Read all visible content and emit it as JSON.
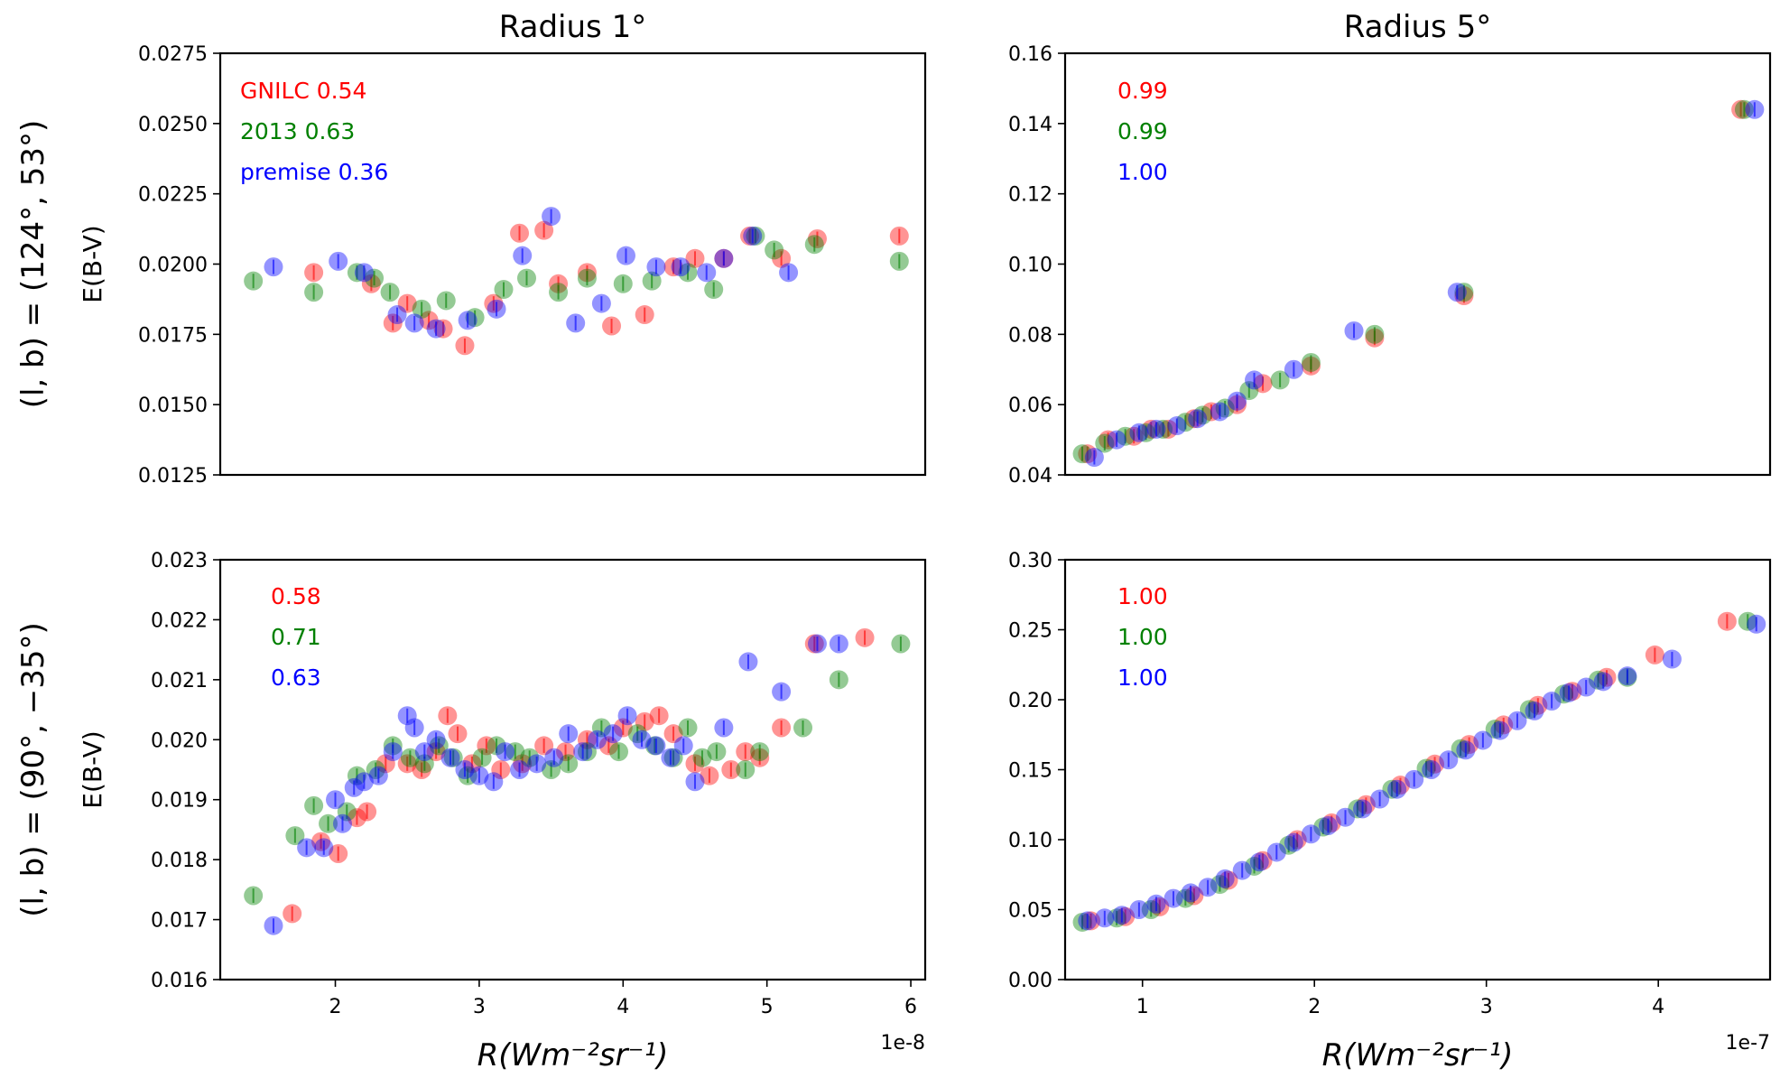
{
  "chart_data": [
    {
      "type": "scatter",
      "panel": "top-left",
      "title": "Radius 1°",
      "row_label": "(l, b) = (124°, 53°)",
      "ylabel": "E(B-V)",
      "xlabel": "",
      "xlim": [
        1.2,
        6.1
      ],
      "ylim": [
        0.0125,
        0.0275
      ],
      "xticks": [],
      "yticks": [
        "0.0125",
        "0.0150",
        "0.0175",
        "0.0200",
        "0.0225",
        "0.0250",
        "0.0275"
      ],
      "ytick_values": [
        0.0125,
        0.015,
        0.0175,
        0.02,
        0.0225,
        0.025,
        0.0275
      ],
      "x_scale": "1e-8",
      "annotations": [
        {
          "text": "GNILC 0.54",
          "color": "#ff0000"
        },
        {
          "text": "2013 0.63",
          "color": "#008000"
        },
        {
          "text": "premise 0.36",
          "color": "#0000ff"
        }
      ],
      "series": [
        {
          "name": "GNILC",
          "color": "#ff0000",
          "x": [
            1.85,
            2.25,
            2.4,
            2.5,
            2.65,
            2.75,
            2.9,
            3.1,
            3.28,
            3.45,
            3.55,
            3.75,
            3.92,
            4.15,
            4.35,
            4.5,
            4.7,
            4.88,
            5.1,
            5.35,
            5.92
          ],
          "y": [
            0.0197,
            0.0193,
            0.0179,
            0.0186,
            0.018,
            0.0177,
            0.0171,
            0.0186,
            0.0211,
            0.0212,
            0.0193,
            0.0197,
            0.0178,
            0.0182,
            0.0199,
            0.0202,
            0.0202,
            0.021,
            0.0202,
            0.0209,
            0.021
          ]
        },
        {
          "name": "2013",
          "color": "#008000",
          "x": [
            1.43,
            1.85,
            2.15,
            2.27,
            2.38,
            2.6,
            2.77,
            2.97,
            3.17,
            3.33,
            3.55,
            3.75,
            4.0,
            4.2,
            4.45,
            4.63,
            4.92,
            5.05,
            5.33,
            5.92
          ],
          "y": [
            0.0194,
            0.019,
            0.0197,
            0.0195,
            0.019,
            0.0184,
            0.0187,
            0.0181,
            0.0191,
            0.0195,
            0.019,
            0.0195,
            0.0193,
            0.0194,
            0.0197,
            0.0191,
            0.021,
            0.0205,
            0.0207,
            0.0201
          ]
        },
        {
          "name": "premise",
          "color": "#0000ff",
          "x": [
            1.57,
            2.02,
            2.2,
            2.43,
            2.55,
            2.7,
            2.92,
            3.12,
            3.3,
            3.5,
            3.67,
            3.85,
            4.02,
            4.23,
            4.4,
            4.58,
            4.7,
            4.9,
            5.15
          ],
          "y": [
            0.0199,
            0.0201,
            0.0197,
            0.0182,
            0.0179,
            0.0177,
            0.018,
            0.0184,
            0.0203,
            0.0217,
            0.0179,
            0.0186,
            0.0203,
            0.0199,
            0.0199,
            0.0197,
            0.0202,
            0.021,
            0.0197
          ]
        }
      ]
    },
    {
      "type": "scatter",
      "panel": "top-right",
      "title": "Radius 5°",
      "row_label": "",
      "ylabel": "",
      "xlabel": "",
      "xlim": [
        0.55,
        4.65
      ],
      "ylim": [
        0.04,
        0.16
      ],
      "xticks": [],
      "yticks": [
        "0.04",
        "0.06",
        "0.08",
        "0.10",
        "0.12",
        "0.14",
        "0.16"
      ],
      "ytick_values": [
        0.04,
        0.06,
        0.08,
        0.1,
        0.12,
        0.14,
        0.16
      ],
      "x_scale": "1e-7",
      "annotations": [
        {
          "text": "0.99",
          "color": "#ff0000"
        },
        {
          "text": "0.99",
          "color": "#008000"
        },
        {
          "text": "1.00",
          "color": "#0000ff"
        }
      ],
      "series": [
        {
          "name": "GNILC",
          "color": "#ff0000",
          "x": [
            0.68,
            0.8,
            0.95,
            1.05,
            1.15,
            1.3,
            1.4,
            1.55,
            1.7,
            1.98,
            2.35,
            2.87,
            4.48
          ],
          "y": [
            0.046,
            0.05,
            0.051,
            0.053,
            0.053,
            0.056,
            0.058,
            0.06,
            0.066,
            0.071,
            0.079,
            0.091,
            0.144
          ]
        },
        {
          "name": "2013",
          "color": "#008000",
          "x": [
            0.65,
            0.78,
            0.9,
            1.02,
            1.12,
            1.25,
            1.35,
            1.48,
            1.62,
            1.8,
            1.98,
            2.35,
            2.87,
            4.5
          ],
          "y": [
            0.046,
            0.049,
            0.051,
            0.052,
            0.053,
            0.055,
            0.057,
            0.059,
            0.064,
            0.067,
            0.072,
            0.08,
            0.092,
            0.144
          ]
        },
        {
          "name": "premise",
          "color": "#0000ff",
          "x": [
            0.72,
            0.85,
            0.98,
            1.08,
            1.2,
            1.32,
            1.45,
            1.55,
            1.65,
            1.88,
            2.23,
            2.83,
            4.56
          ],
          "y": [
            0.045,
            0.05,
            0.052,
            0.053,
            0.054,
            0.056,
            0.058,
            0.061,
            0.067,
            0.07,
            0.081,
            0.092,
            0.144
          ]
        }
      ]
    },
    {
      "type": "scatter",
      "panel": "bottom-left",
      "title": "",
      "row_label": "(l, b) = (90°, −35°)",
      "ylabel": "E(B-V)",
      "xlabel": "R(Wm⁻²sr⁻¹)",
      "xlim": [
        1.2,
        6.1
      ],
      "ylim": [
        0.016,
        0.023
      ],
      "xticks": [
        "2",
        "3",
        "4",
        "5",
        "6"
      ],
      "xtick_values": [
        2,
        3,
        4,
        5,
        6
      ],
      "yticks": [
        "0.016",
        "0.017",
        "0.018",
        "0.019",
        "0.020",
        "0.021",
        "0.022",
        "0.023"
      ],
      "ytick_values": [
        0.016,
        0.017,
        0.018,
        0.019,
        0.02,
        0.021,
        0.022,
        0.023
      ],
      "x_scale": "1e-8",
      "annotations": [
        {
          "text": "0.58",
          "color": "#ff0000"
        },
        {
          "text": "0.71",
          "color": "#008000"
        },
        {
          "text": "0.63",
          "color": "#0000ff"
        }
      ],
      "series": [
        {
          "name": "GNILC",
          "color": "#ff0000",
          "x": [
            1.7,
            1.9,
            2.02,
            2.15,
            2.22,
            2.35,
            2.5,
            2.6,
            2.7,
            2.78,
            2.85,
            2.95,
            3.05,
            3.15,
            3.3,
            3.45,
            3.6,
            3.75,
            3.9,
            4.0,
            4.15,
            4.25,
            4.35,
            4.5,
            4.6,
            4.75,
            4.85,
            4.95,
            5.1,
            5.33,
            5.68
          ],
          "y": [
            0.0171,
            0.0183,
            0.0181,
            0.0187,
            0.0188,
            0.0196,
            0.0196,
            0.0195,
            0.0198,
            0.0204,
            0.0201,
            0.0196,
            0.0199,
            0.0195,
            0.0196,
            0.0199,
            0.0198,
            0.02,
            0.0199,
            0.0202,
            0.0203,
            0.0204,
            0.0201,
            0.0196,
            0.0194,
            0.0195,
            0.0198,
            0.0197,
            0.0202,
            0.0216,
            0.0217
          ]
        },
        {
          "name": "2013",
          "color": "#008000",
          "x": [
            1.43,
            1.72,
            1.85,
            1.95,
            2.08,
            2.15,
            2.28,
            2.4,
            2.52,
            2.62,
            2.72,
            2.82,
            2.92,
            3.02,
            3.12,
            3.25,
            3.35,
            3.5,
            3.62,
            3.75,
            3.85,
            3.97,
            4.1,
            4.22,
            4.35,
            4.45,
            4.55,
            4.65,
            4.85,
            4.95,
            5.25,
            5.5,
            5.93
          ],
          "y": [
            0.0174,
            0.0184,
            0.0189,
            0.0186,
            0.0188,
            0.0194,
            0.0195,
            0.0199,
            0.0197,
            0.0196,
            0.0199,
            0.0197,
            0.0194,
            0.0197,
            0.0199,
            0.0198,
            0.0197,
            0.0195,
            0.0196,
            0.0198,
            0.0202,
            0.0198,
            0.0201,
            0.0199,
            0.0197,
            0.0202,
            0.0197,
            0.0198,
            0.0195,
            0.0198,
            0.0202,
            0.021,
            0.0216
          ]
        },
        {
          "name": "premise",
          "color": "#0000ff",
          "x": [
            1.57,
            1.8,
            1.92,
            2.0,
            2.05,
            2.13,
            2.2,
            2.3,
            2.4,
            2.5,
            2.55,
            2.62,
            2.7,
            2.8,
            2.9,
            3.0,
            3.1,
            3.18,
            3.28,
            3.4,
            3.52,
            3.62,
            3.72,
            3.82,
            3.93,
            4.03,
            4.13,
            4.23,
            4.33,
            4.42,
            4.5,
            4.7,
            4.87,
            5.1,
            5.35,
            5.5
          ],
          "y": [
            0.0169,
            0.0182,
            0.0182,
            0.019,
            0.0186,
            0.0192,
            0.0193,
            0.0194,
            0.0198,
            0.0204,
            0.0202,
            0.0198,
            0.02,
            0.0197,
            0.0195,
            0.0194,
            0.0193,
            0.0198,
            0.0195,
            0.0196,
            0.0197,
            0.0201,
            0.0198,
            0.02,
            0.0201,
            0.0204,
            0.02,
            0.0199,
            0.0197,
            0.0199,
            0.0193,
            0.0202,
            0.0213,
            0.0208,
            0.0216,
            0.0216
          ]
        }
      ]
    },
    {
      "type": "scatter",
      "panel": "bottom-right",
      "title": "",
      "row_label": "",
      "ylabel": "",
      "xlabel": "R(Wm⁻²sr⁻¹)",
      "xlim": [
        0.55,
        4.65
      ],
      "ylim": [
        0.0,
        0.3
      ],
      "xticks": [
        "1",
        "2",
        "3",
        "4"
      ],
      "xtick_values": [
        1,
        2,
        3,
        4
      ],
      "yticks": [
        "0.00",
        "0.05",
        "0.10",
        "0.15",
        "0.20",
        "0.25",
        "0.30"
      ],
      "ytick_values": [
        0.0,
        0.05,
        0.1,
        0.15,
        0.2,
        0.25,
        0.3
      ],
      "x_scale": "1e-7",
      "annotations": [
        {
          "text": "1.00",
          "color": "#ff0000"
        },
        {
          "text": "1.00",
          "color": "#008000"
        },
        {
          "text": "1.00",
          "color": "#0000ff"
        }
      ],
      "series": [
        {
          "name": "GNILC",
          "color": "#ff0000",
          "x": [
            0.7,
            0.9,
            1.1,
            1.3,
            1.5,
            1.7,
            1.9,
            2.1,
            2.3,
            2.5,
            2.7,
            2.9,
            3.1,
            3.3,
            3.5,
            3.7,
            3.98,
            4.4
          ],
          "y": [
            0.042,
            0.045,
            0.052,
            0.06,
            0.071,
            0.085,
            0.1,
            0.112,
            0.125,
            0.139,
            0.154,
            0.168,
            0.182,
            0.196,
            0.206,
            0.216,
            0.232,
            0.256
          ]
        },
        {
          "name": "2013",
          "color": "#008000",
          "x": [
            0.65,
            0.85,
            1.05,
            1.25,
            1.45,
            1.65,
            1.85,
            2.05,
            2.25,
            2.45,
            2.65,
            2.85,
            3.05,
            3.25,
            3.45,
            3.65,
            3.82,
            4.52
          ],
          "y": [
            0.041,
            0.044,
            0.05,
            0.058,
            0.068,
            0.081,
            0.096,
            0.109,
            0.122,
            0.136,
            0.151,
            0.165,
            0.179,
            0.193,
            0.204,
            0.214,
            0.216,
            0.256
          ]
        },
        {
          "name": "premise",
          "color": "#0000ff",
          "x": [
            0.68,
            0.78,
            0.88,
            0.98,
            1.08,
            1.18,
            1.28,
            1.38,
            1.48,
            1.58,
            1.68,
            1.78,
            1.88,
            1.98,
            2.08,
            2.18,
            2.28,
            2.38,
            2.48,
            2.58,
            2.68,
            2.78,
            2.88,
            2.98,
            3.08,
            3.18,
            3.28,
            3.38,
            3.48,
            3.58,
            3.68,
            3.82,
            4.08,
            4.57
          ],
          "y": [
            0.042,
            0.044,
            0.046,
            0.05,
            0.054,
            0.058,
            0.062,
            0.066,
            0.072,
            0.078,
            0.084,
            0.091,
            0.098,
            0.104,
            0.11,
            0.116,
            0.122,
            0.129,
            0.136,
            0.143,
            0.15,
            0.157,
            0.164,
            0.171,
            0.178,
            0.185,
            0.192,
            0.199,
            0.205,
            0.209,
            0.213,
            0.217,
            0.229,
            0.254
          ]
        }
      ]
    }
  ]
}
